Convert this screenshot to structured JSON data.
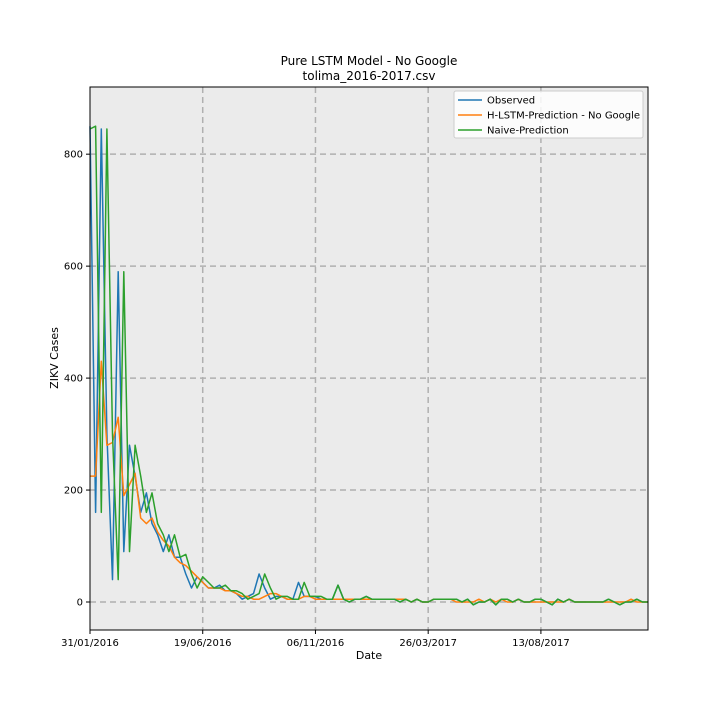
{
  "chart_data": {
    "type": "line",
    "title": "Pure LSTM Model - No Google",
    "subtitle": "tolima_2016-2017.csv",
    "xlabel": "Date",
    "ylabel": "ZIKV Cases",
    "ylim": [
      -50,
      920
    ],
    "xlim": [
      0,
      99
    ],
    "x_ticks": [
      {
        "x": 0,
        "label": "31/01/2016"
      },
      {
        "x": 20,
        "label": "19/06/2016"
      },
      {
        "x": 40,
        "label": "06/11/2016"
      },
      {
        "x": 60,
        "label": "26/03/2017"
      },
      {
        "x": 80,
        "label": "13/08/2017"
      }
    ],
    "y_ticks": [
      0,
      200,
      400,
      600,
      800
    ],
    "grid": true,
    "legend_position": "top-right",
    "colors": {
      "observed": "#1f77b4",
      "lstm": "#ff7f0e",
      "naive": "#2ca02c",
      "plot_bg": "#ebebeb",
      "grid": "#b0b0b0"
    },
    "series": [
      {
        "name": "Observed",
        "color": "#1f77b4",
        "values": [
          850,
          160,
          845,
          300,
          40,
          590,
          90,
          280,
          225,
          160,
          195,
          140,
          120,
          90,
          120,
          80,
          80,
          50,
          25,
          45,
          35,
          25,
          25,
          30,
          20,
          20,
          15,
          5,
          10,
          15,
          50,
          25,
          5,
          10,
          10,
          5,
          5,
          35,
          10,
          10,
          10,
          5,
          5,
          5,
          30,
          5,
          0,
          5,
          5,
          10,
          5,
          5,
          5,
          5,
          5,
          0,
          5,
          0,
          5,
          0,
          0,
          5,
          5,
          5,
          5,
          5,
          0,
          5,
          -5,
          0,
          0,
          5,
          -5,
          5,
          5,
          0,
          5,
          0,
          0,
          5,
          5,
          0,
          -5,
          5,
          0,
          5,
          0,
          0,
          0,
          0,
          0,
          0,
          5,
          0,
          -5,
          0,
          0,
          5,
          0,
          0
        ]
      },
      {
        "name": "H-LSTM-Prediction - No Google",
        "color": "#ff7f0e",
        "values": [
          225,
          225,
          430,
          280,
          285,
          330,
          190,
          210,
          230,
          150,
          140,
          150,
          125,
          110,
          100,
          80,
          70,
          65,
          55,
          45,
          35,
          25,
          25,
          25,
          20,
          20,
          15,
          10,
          10,
          5,
          5,
          10,
          15,
          15,
          10,
          5,
          5,
          5,
          10,
          10,
          5,
          5,
          5,
          5,
          5,
          5,
          5,
          5,
          5,
          5,
          5,
          5,
          5,
          5,
          5,
          5,
          5,
          0,
          5,
          0,
          0,
          5,
          5,
          5,
          5,
          0,
          0,
          0,
          0,
          5,
          0,
          5,
          0,
          5,
          0,
          0,
          5,
          0,
          0,
          0,
          0,
          0,
          0,
          0,
          0,
          5,
          0,
          0,
          0,
          0,
          0,
          0,
          0,
          0,
          0,
          0,
          5,
          0,
          0,
          0
        ]
      },
      {
        "name": "Naive-Prediction",
        "color": "#2ca02c",
        "values": [
          845,
          850,
          160,
          845,
          300,
          40,
          590,
          90,
          280,
          225,
          160,
          195,
          140,
          120,
          90,
          120,
          80,
          85,
          50,
          25,
          45,
          35,
          25,
          25,
          30,
          20,
          20,
          15,
          5,
          10,
          15,
          50,
          25,
          5,
          10,
          10,
          5,
          5,
          35,
          10,
          10,
          10,
          5,
          5,
          30,
          5,
          0,
          5,
          5,
          10,
          5,
          5,
          5,
          5,
          5,
          0,
          5,
          0,
          5,
          0,
          0,
          5,
          5,
          5,
          5,
          5,
          0,
          5,
          -5,
          0,
          0,
          5,
          -5,
          5,
          5,
          0,
          5,
          0,
          0,
          5,
          5,
          0,
          -5,
          5,
          0,
          5,
          0,
          0,
          0,
          0,
          0,
          0,
          5,
          0,
          -5,
          0,
          0,
          5,
          0,
          0
        ]
      }
    ]
  }
}
